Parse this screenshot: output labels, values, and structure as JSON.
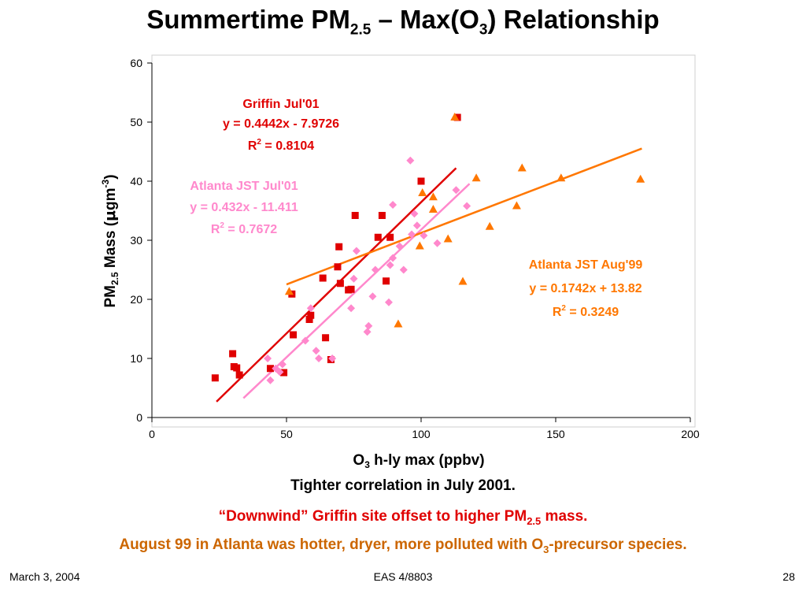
{
  "slide": {
    "title_main": "Summertime PM",
    "title_sub": "2.5",
    "title_mid": " – Max(O",
    "title_sub2": "3",
    "title_end": ") Relationship"
  },
  "captions": {
    "line1": "Tighter correlation in July 2001.",
    "line2_a": "“Downwind” Griffin site offset to higher PM",
    "line2_sub": "2.5",
    "line2_b": " mass.",
    "line3_a": "August 99 in Atlanta was hotter, dryer, more polluted with O",
    "line3_sub": "3",
    "line3_b": "-precursor species."
  },
  "footer": {
    "date": "March 3, 2004",
    "course": "EAS 4/8803",
    "page": "28"
  },
  "chart_data": {
    "type": "scatter",
    "xlabel": {
      "a": "O",
      "sub": "3",
      "b": " h-ly max   (ppbv)"
    },
    "ylabel": {
      "a": "PM",
      "sub": "2.5",
      "b": " Mass  (",
      "mu": "μ",
      "c": "gm",
      "sup": "-3",
      "d": ")"
    },
    "xlim": [
      0,
      200
    ],
    "ylim": [
      0,
      60
    ],
    "xticks": [
      0,
      50,
      100,
      150,
      200
    ],
    "yticks": [
      0,
      10,
      20,
      30,
      40,
      50,
      60
    ],
    "grid": false,
    "legend": "none",
    "annotations": {
      "griffin": {
        "name": "Griffin Jul'01",
        "eq": "y = 0.4442x - 7.9726",
        "r2_prefix": "R",
        "r2_sup": "2",
        "r2_value": " = 0.8104",
        "color": "#e00000"
      },
      "atl01": {
        "name": "Atlanta JST Jul'01",
        "eq": "y = 0.432x - 11.411",
        "r2_prefix": "R",
        "r2_sup": "2",
        "r2_value": " = 0.7672",
        "color": "#ff88cc"
      },
      "atl99": {
        "name": "Atlanta JST Aug'99",
        "eq": "y = 0.1742x + 13.82",
        "r2_prefix": "R",
        "r2_sup": "2",
        "r2_value": " = 0.3249",
        "color": "#ff7700"
      }
    },
    "series": [
      {
        "key": "griffin",
        "marker": "square",
        "color": "#e00000",
        "trend": {
          "slope": 0.4442,
          "intercept": -7.9726,
          "x_range": [
            24,
            113
          ]
        },
        "points": [
          [
            23.5,
            6.7
          ],
          [
            30,
            10.8
          ],
          [
            30.5,
            8.6
          ],
          [
            31.5,
            8.4
          ],
          [
            32.5,
            7.2
          ],
          [
            44,
            8.3
          ],
          [
            49,
            7.6
          ],
          [
            52,
            20.9
          ],
          [
            52.5,
            14
          ],
          [
            58.5,
            16.6
          ],
          [
            59,
            17.3
          ],
          [
            63.5,
            23.6
          ],
          [
            64.5,
            13.5
          ],
          [
            66.5,
            9.8
          ],
          [
            69,
            25.5
          ],
          [
            69.5,
            28.9
          ],
          [
            70,
            22.7
          ],
          [
            73,
            21.6
          ],
          [
            74,
            21.7
          ],
          [
            75.5,
            34.2
          ],
          [
            84,
            30.5
          ],
          [
            85.5,
            34.2
          ],
          [
            87,
            23.1
          ],
          [
            88.5,
            30.5
          ],
          [
            100,
            40
          ],
          [
            113.5,
            50.8
          ]
        ]
      },
      {
        "key": "atl01",
        "marker": "diamond",
        "color": "#ff88cc",
        "trend": {
          "slope": 0.432,
          "intercept": -11.411,
          "x_range": [
            34,
            118
          ]
        },
        "points": [
          [
            43,
            10
          ],
          [
            44,
            6.3
          ],
          [
            46,
            8.3
          ],
          [
            47.5,
            7.7
          ],
          [
            48.5,
            9
          ],
          [
            57,
            13
          ],
          [
            59,
            18.5
          ],
          [
            61,
            11.3
          ],
          [
            62,
            10
          ],
          [
            67,
            10
          ],
          [
            74,
            18.5
          ],
          [
            75,
            23.5
          ],
          [
            76,
            28.2
          ],
          [
            80,
            14.5
          ],
          [
            80.5,
            15.5
          ],
          [
            82,
            20.5
          ],
          [
            83,
            25
          ],
          [
            88,
            19.5
          ],
          [
            88.5,
            25.8
          ],
          [
            89.5,
            27
          ],
          [
            89.5,
            36
          ],
          [
            92,
            29
          ],
          [
            93.5,
            25
          ],
          [
            96,
            43.5
          ],
          [
            96.5,
            31
          ],
          [
            97.5,
            34.5
          ],
          [
            98.5,
            32.5
          ],
          [
            101,
            30.8
          ],
          [
            106,
            29.5
          ],
          [
            113,
            38.5
          ],
          [
            117,
            35.8
          ]
        ]
      },
      {
        "key": "atl99",
        "marker": "triangle",
        "color": "#ff7700",
        "trend": {
          "slope": 0.1742,
          "intercept": 13.82,
          "x_range": [
            50,
            182
          ]
        },
        "points": [
          [
            51,
            21.3
          ],
          [
            91.5,
            15.8
          ],
          [
            99.5,
            29
          ],
          [
            100.5,
            38
          ],
          [
            104.5,
            37.3
          ],
          [
            104.5,
            35.2
          ],
          [
            110,
            30.2
          ],
          [
            112.5,
            50.8
          ],
          [
            115.5,
            23
          ],
          [
            120.5,
            40.5
          ],
          [
            125.5,
            32.3
          ],
          [
            135.5,
            35.8
          ],
          [
            137.5,
            42.2
          ],
          [
            152,
            40.5
          ],
          [
            181.5,
            40.3
          ]
        ]
      }
    ]
  }
}
